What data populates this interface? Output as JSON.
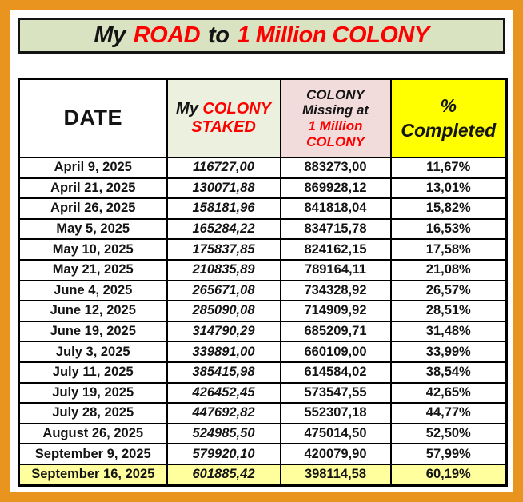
{
  "colors": {
    "frame_orange": "#E8941E",
    "title_background": "#D9E3C1",
    "staked_header_background": "#EBF1DE",
    "missing_header_background": "#F2DCDB",
    "completed_header_background": "#FFFF00",
    "highlight_row_background": "#FFFF9D",
    "accent_red": "#FE0000",
    "text_black": "#141414"
  },
  "title": {
    "part1": "My",
    "part2": "ROAD",
    "part3": "to",
    "part4": "1 Million COLONY"
  },
  "table": {
    "header": {
      "date": "DATE",
      "staked_prefix": "My",
      "staked_main": "COLONY STAKED",
      "missing_prefix": "COLONY Missing at",
      "missing_main": "1 Million COLONY",
      "completed_symbol": "%",
      "completed_word": "Completed"
    }
  },
  "chart_data": {
    "type": "table",
    "title": "My ROAD to 1 Million COLONY",
    "columns": [
      "DATE",
      "My COLONY STAKED",
      "COLONY Missing at 1 Million COLONY",
      "% Completed"
    ],
    "rows": [
      {
        "date": "April 9, 2025",
        "staked": "116727,00",
        "missing": "883273,00",
        "completed": "11,67%"
      },
      {
        "date": "April 21, 2025",
        "staked": "130071,88",
        "missing": "869928,12",
        "completed": "13,01%"
      },
      {
        "date": "April 26, 2025",
        "staked": "158181,96",
        "missing": "841818,04",
        "completed": "15,82%"
      },
      {
        "date": "May 5, 2025",
        "staked": "165284,22",
        "missing": "834715,78",
        "completed": "16,53%"
      },
      {
        "date": "May 10, 2025",
        "staked": "175837,85",
        "missing": "824162,15",
        "completed": "17,58%"
      },
      {
        "date": "May 21, 2025",
        "staked": "210835,89",
        "missing": "789164,11",
        "completed": "21,08%"
      },
      {
        "date": "June 4, 2025",
        "staked": "265671,08",
        "missing": "734328,92",
        "completed": "26,57%"
      },
      {
        "date": "June 12, 2025",
        "staked": "285090,08",
        "missing": "714909,92",
        "completed": "28,51%"
      },
      {
        "date": "June 19, 2025",
        "staked": "314790,29",
        "missing": "685209,71",
        "completed": "31,48%"
      },
      {
        "date": "July 3, 2025",
        "staked": "339891,00",
        "missing": "660109,00",
        "completed": "33,99%"
      },
      {
        "date": "July 11, 2025",
        "staked": "385415,98",
        "missing": "614584,02",
        "completed": "38,54%"
      },
      {
        "date": "July 19, 2025",
        "staked": "426452,45",
        "missing": "573547,55",
        "completed": "42,65%"
      },
      {
        "date": "July 28, 2025",
        "staked": "447692,82",
        "missing": "552307,18",
        "completed": "44,77%"
      },
      {
        "date": "August 26, 2025",
        "staked": "524985,50",
        "missing": "475014,50",
        "completed": "52,50%"
      },
      {
        "date": "September 9, 2025",
        "staked": "579920,10",
        "missing": "420079,90",
        "completed": "57,99%"
      },
      {
        "date": "September 16, 2025",
        "staked": "601885,42",
        "missing": "398114,58",
        "completed": "60,19%",
        "highlighted": true
      }
    ]
  }
}
